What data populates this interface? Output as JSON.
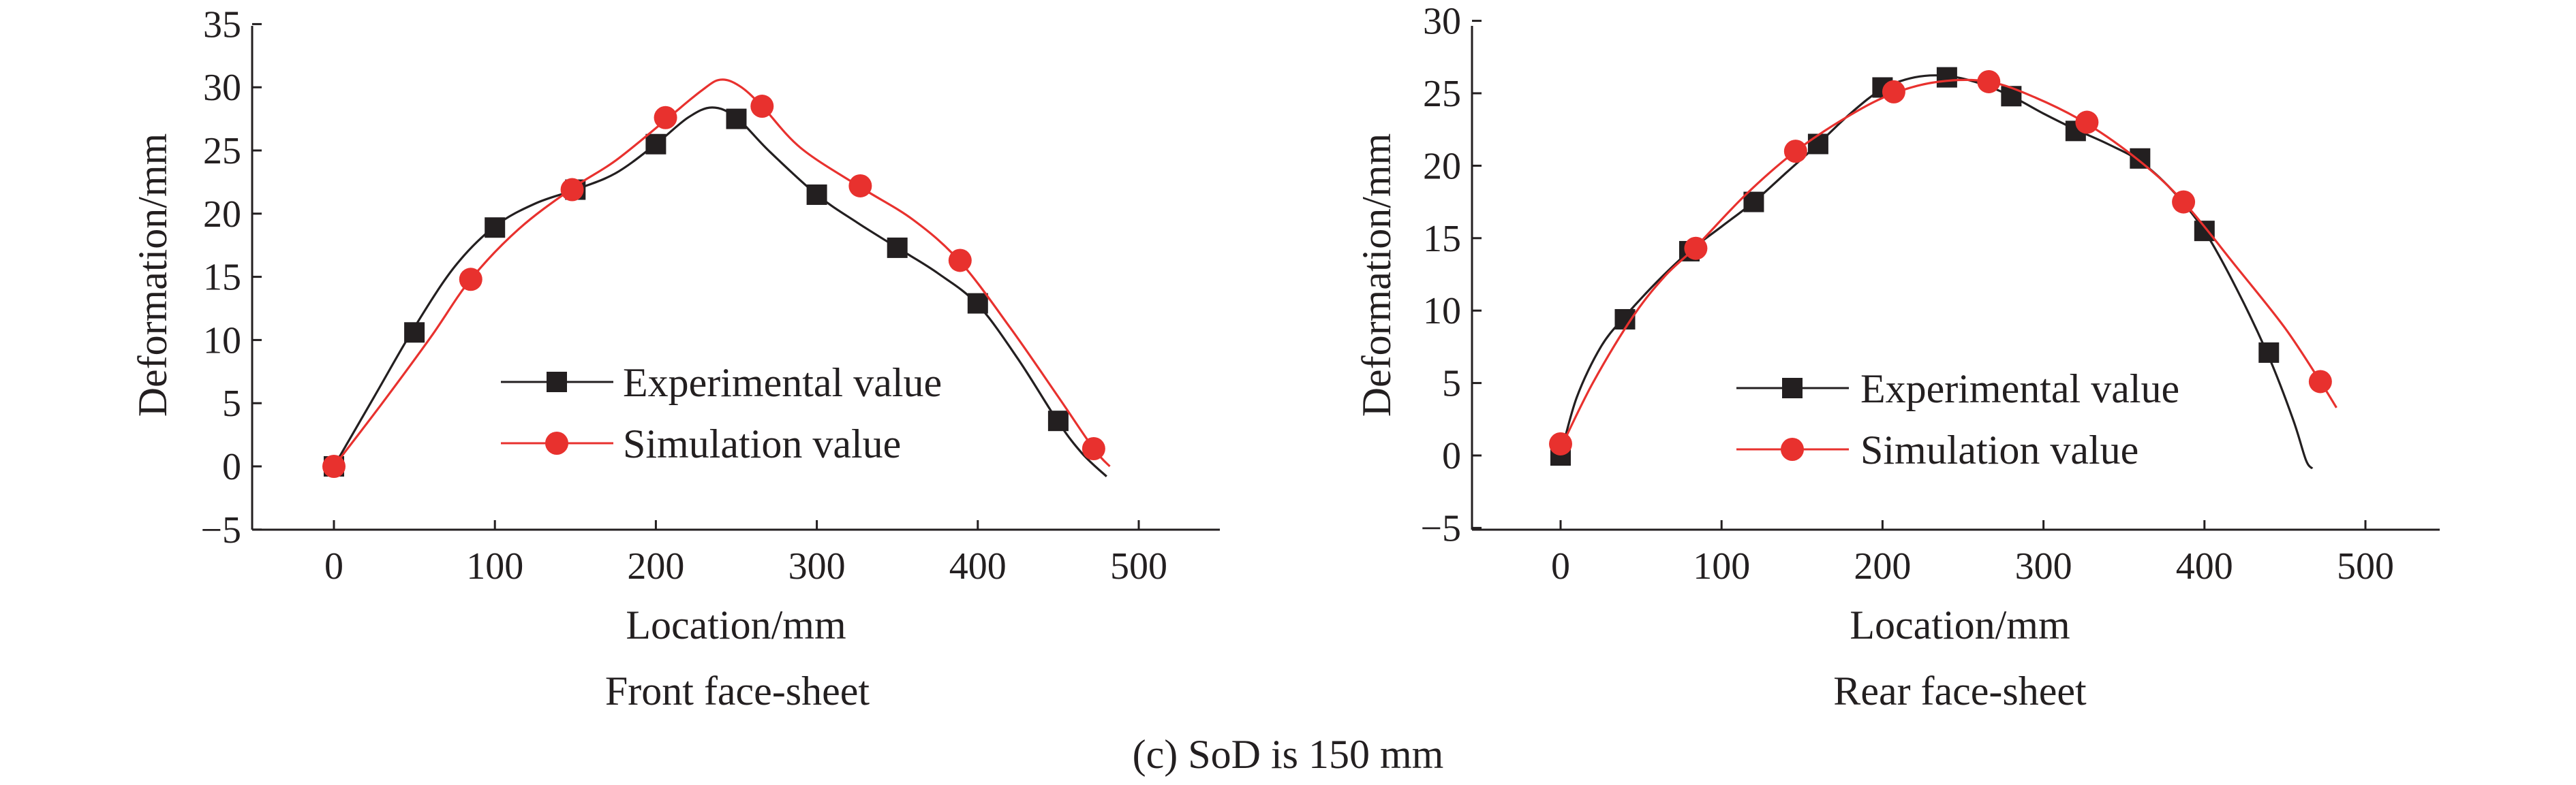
{
  "figure_caption": "(c) SoD is 150 mm",
  "chart_data": [
    {
      "type": "line",
      "caption": "Front face-sheet",
      "xlabel": "Location/mm",
      "ylabel": "Deformation/mm",
      "xlim": [
        -50,
        550
      ],
      "ylim": [
        -5,
        35
      ],
      "xticks": [
        0,
        100,
        200,
        300,
        400,
        500
      ],
      "yticks": [
        -5,
        0,
        5,
        10,
        15,
        20,
        25,
        30,
        35
      ],
      "legend_position": "center",
      "series": [
        {
          "name": "Experimental value",
          "marker": "square",
          "color": "#231f20",
          "points": [
            [
              0,
              0
            ],
            [
              50,
              10.6
            ],
            [
              100,
              18.9
            ],
            [
              150,
              21.9
            ],
            [
              200,
              25.5
            ],
            [
              250,
              27.5
            ],
            [
              300,
              21.5
            ],
            [
              350,
              17.3
            ],
            [
              400,
              12.9
            ],
            [
              450,
              3.6
            ]
          ],
          "curve": [
            [
              0,
              0
            ],
            [
              25,
              5.5
            ],
            [
              50,
              11
            ],
            [
              75,
              15.8
            ],
            [
              100,
              19
            ],
            [
              125,
              20.8
            ],
            [
              150,
              21.9
            ],
            [
              175,
              23.2
            ],
            [
              200,
              25.5
            ],
            [
              220,
              27.6
            ],
            [
              235,
              28.4
            ],
            [
              250,
              27.6
            ],
            [
              270,
              25
            ],
            [
              300,
              21.5
            ],
            [
              325,
              19.3
            ],
            [
              350,
              17.3
            ],
            [
              375,
              15.3
            ],
            [
              400,
              12.8
            ],
            [
              425,
              8.5
            ],
            [
              450,
              3.5
            ],
            [
              465,
              1
            ],
            [
              480,
              -0.8
            ]
          ]
        },
        {
          "name": "Simulation value",
          "marker": "circle",
          "color": "#e8312e",
          "points": [
            [
              0,
              0
            ],
            [
              85,
              14.8
            ],
            [
              148,
              21.9
            ],
            [
              206,
              27.6
            ],
            [
              266,
              28.5
            ],
            [
              327,
              22.2
            ],
            [
              389,
              16.3
            ],
            [
              472,
              1.4
            ]
          ],
          "curve": [
            [
              0,
              0
            ],
            [
              30,
              5
            ],
            [
              60,
              10.2
            ],
            [
              85,
              14.8
            ],
            [
              115,
              18.8
            ],
            [
              148,
              22
            ],
            [
              175,
              24.2
            ],
            [
              206,
              27.4
            ],
            [
              228,
              29.7
            ],
            [
              240,
              30.6
            ],
            [
              252,
              30.1
            ],
            [
              266,
              28.5
            ],
            [
              290,
              25.2
            ],
            [
              327,
              22.1
            ],
            [
              360,
              19.5
            ],
            [
              389,
              16.2
            ],
            [
              420,
              11
            ],
            [
              450,
              5.5
            ],
            [
              472,
              1.4
            ],
            [
              482,
              0
            ]
          ]
        }
      ]
    },
    {
      "type": "line",
      "caption": "Rear face-sheet",
      "xlabel": "Location/mm",
      "ylabel": "Deformation/mm",
      "xlim": [
        -50,
        550
      ],
      "ylim": [
        -5,
        30
      ],
      "xticks": [
        0,
        100,
        200,
        300,
        400,
        500
      ],
      "yticks": [
        -5,
        0,
        5,
        10,
        15,
        20,
        25,
        30
      ],
      "legend_position": "bottom-center",
      "series": [
        {
          "name": "Experimental value",
          "marker": "square",
          "color": "#231f20",
          "points": [
            [
              0,
              0
            ],
            [
              40,
              9.4
            ],
            [
              80,
              14.1
            ],
            [
              120,
              17.5
            ],
            [
              160,
              21.5
            ],
            [
              200,
              25.4
            ],
            [
              240,
              26.1
            ],
            [
              280,
              24.8
            ],
            [
              320,
              22.4
            ],
            [
              360,
              20.5
            ],
            [
              400,
              15.5
            ],
            [
              440,
              7.1
            ]
          ],
          "curve": [
            [
              0,
              0
            ],
            [
              10,
              4
            ],
            [
              25,
              7.5
            ],
            [
              40,
              9.6
            ],
            [
              60,
              12
            ],
            [
              80,
              14.1
            ],
            [
              100,
              15.8
            ],
            [
              120,
              17.5
            ],
            [
              140,
              19.5
            ],
            [
              160,
              21.5
            ],
            [
              180,
              23.6
            ],
            [
              200,
              25.3
            ],
            [
              220,
              26.1
            ],
            [
              240,
              26.2
            ],
            [
              260,
              25.7
            ],
            [
              280,
              24.8
            ],
            [
              300,
              23.6
            ],
            [
              320,
              22.5
            ],
            [
              340,
              21.5
            ],
            [
              360,
              20.3
            ],
            [
              380,
              18.3
            ],
            [
              400,
              15.5
            ],
            [
              420,
              11.5
            ],
            [
              440,
              6.8
            ],
            [
              455,
              2.5
            ],
            [
              463,
              -0.3
            ],
            [
              467,
              -0.9
            ]
          ]
        },
        {
          "name": "Simulation value",
          "marker": "circle",
          "color": "#e8312e",
          "points": [
            [
              0,
              0.8
            ],
            [
              84,
              14.3
            ],
            [
              146,
              21
            ],
            [
              207,
              25.1
            ],
            [
              266,
              25.8
            ],
            [
              327,
              23
            ],
            [
              387,
              17.5
            ],
            [
              472,
              5.1
            ]
          ],
          "curve": [
            [
              0,
              0.5
            ],
            [
              20,
              5
            ],
            [
              45,
              9.6
            ],
            [
              65,
              12.4
            ],
            [
              84,
              14.4
            ],
            [
              115,
              18
            ],
            [
              146,
              21
            ],
            [
              180,
              23.5
            ],
            [
              207,
              25
            ],
            [
              235,
              25.8
            ],
            [
              266,
              25.8
            ],
            [
              295,
              24.7
            ],
            [
              327,
              22.9
            ],
            [
              360,
              20.3
            ],
            [
              387,
              17.5
            ],
            [
              420,
              13
            ],
            [
              450,
              8.8
            ],
            [
              472,
              5.1
            ],
            [
              482,
              3.3
            ]
          ]
        }
      ]
    }
  ]
}
